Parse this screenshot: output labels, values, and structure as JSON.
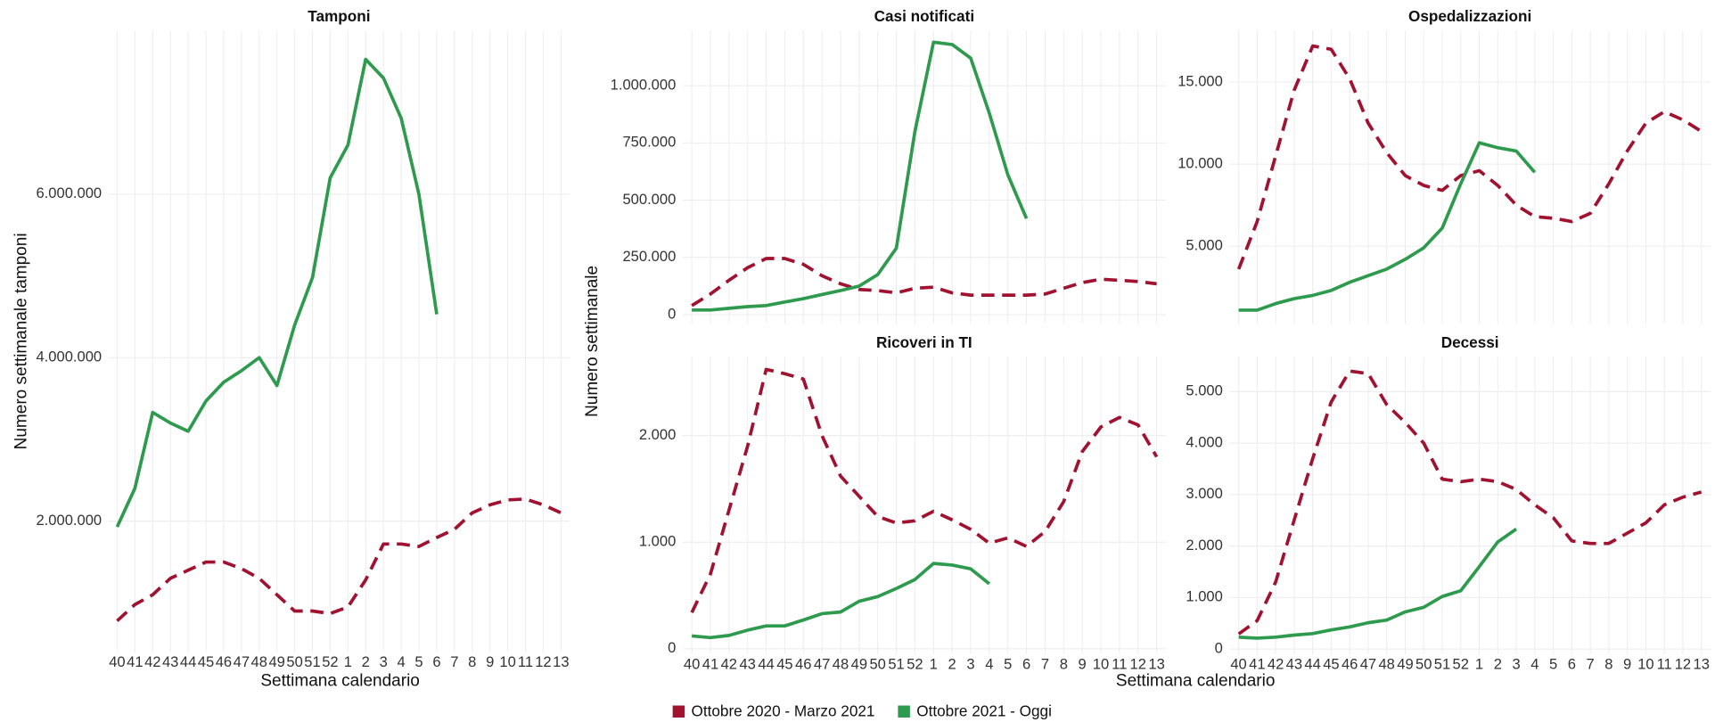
{
  "legend": [
    {
      "name": "Ottobre 2020 - Marzo 2021",
      "color": "#a11230",
      "dashed": true
    },
    {
      "name": "Ottobre 2021 - Oggi",
      "color": "#2e9a4e",
      "dashed": false
    }
  ],
  "shared_ylabel": "Numero settimanale",
  "shared_xlabel": "Settimana calendario",
  "chart_data": [
    {
      "type": "line",
      "title": "Tamponi",
      "ylabel": "Numero settimanale tamponi",
      "xlabel": "Settimana calendario",
      "categories": [
        "40",
        "41",
        "42",
        "43",
        "44",
        "45",
        "46",
        "47",
        "48",
        "49",
        "50",
        "51",
        "52",
        "1",
        "2",
        "3",
        "4",
        "5",
        "6",
        "7",
        "8",
        "9",
        "10",
        "11",
        "12",
        "13"
      ],
      "ylim": [
        400000,
        8000000
      ],
      "yticks": [
        {
          "value": 2000000,
          "label": "2.000.000"
        },
        {
          "value": 4000000,
          "label": "4.000.000"
        },
        {
          "value": 6000000,
          "label": "6.000.000"
        }
      ],
      "series": [
        {
          "values": [
            780000,
            980000,
            1100000,
            1300000,
            1400000,
            1500000,
            1500000,
            1420000,
            1300000,
            1100000,
            900000,
            900000,
            870000,
            950000,
            1280000,
            1720000,
            1720000,
            1690000,
            1800000,
            1900000,
            2100000,
            2200000,
            2260000,
            2270000,
            2200000,
            2100000
          ]
        },
        {
          "values": [
            1930000,
            2400000,
            3330000,
            3200000,
            3100000,
            3470000,
            3700000,
            3840000,
            4000000,
            3660000,
            4400000,
            4980000,
            6200000,
            6600000,
            7650000,
            7420000,
            6930000,
            6000000,
            4530000,
            null,
            null,
            null,
            null,
            null,
            null,
            null
          ]
        }
      ]
    },
    {
      "type": "line",
      "title": "Casi notificati",
      "ylim": [
        -40000,
        1240000
      ],
      "yticks": [
        0,
        {
          "value": 250000,
          "label": "250.000"
        },
        {
          "value": 500000,
          "label": "500.000"
        },
        {
          "value": 750000,
          "label": "750.000"
        },
        {
          "value": 1000000,
          "label": "1.000.000"
        }
      ],
      "series": [
        {
          "values": [
            40000,
            90000,
            150000,
            205000,
            245000,
            245000,
            220000,
            170000,
            135000,
            110000,
            105000,
            95000,
            115000,
            120000,
            95000,
            85000,
            85000,
            85000,
            85000,
            90000,
            115000,
            140000,
            155000,
            150000,
            145000,
            135000
          ]
        },
        {
          "values": [
            20000,
            20000,
            28000,
            35000,
            40000,
            55000,
            70000,
            88000,
            105000,
            125000,
            175000,
            290000,
            800000,
            1190000,
            1180000,
            1120000,
            880000,
            610000,
            420000,
            null,
            null,
            null,
            null,
            null,
            null,
            null
          ]
        }
      ]
    },
    {
      "type": "line",
      "title": "Ospedalizzazioni",
      "ylim": [
        270,
        18130
      ],
      "yticks": [
        {
          "value": 5000,
          "label": "5.000"
        },
        {
          "value": 10000,
          "label": "10.000"
        },
        {
          "value": 15000,
          "label": "15.000"
        }
      ],
      "series": [
        {
          "values": [
            3600,
            6500,
            10500,
            14500,
            17200,
            17000,
            15200,
            12500,
            10700,
            9300,
            8700,
            8400,
            9300,
            9600,
            8700,
            7500,
            6800,
            6700,
            6500,
            7000,
            8800,
            10800,
            12500,
            13200,
            12700,
            12000
          ]
        },
        {
          "values": [
            1100,
            1100,
            1500,
            1800,
            2000,
            2300,
            2800,
            3200,
            3600,
            4200,
            4900,
            6100,
            8800,
            11300,
            11000,
            10800,
            9500,
            null,
            null,
            null,
            null,
            null,
            null,
            null,
            null,
            null
          ]
        }
      ]
    },
    {
      "type": "line",
      "title": "Ricoveri in TI",
      "categories": [
        "40",
        "41",
        "42",
        "43",
        "44",
        "45",
        "46",
        "47",
        "48",
        "49",
        "50",
        "51",
        "52",
        "1",
        "2",
        "3",
        "4",
        "5",
        "6",
        "7",
        "8",
        "9",
        "10",
        "11",
        "12",
        "13"
      ],
      "ylim": [
        -50,
        2740
      ],
      "yticks": [
        0,
        {
          "value": 1000,
          "label": "1.000"
        },
        {
          "value": 2000,
          "label": "2.000"
        }
      ],
      "series": [
        {
          "values": [
            340,
            700,
            1300,
            1900,
            2620,
            2580,
            2530,
            2000,
            1620,
            1430,
            1240,
            1180,
            1200,
            1290,
            1210,
            1120,
            990,
            1040,
            960,
            1100,
            1380,
            1850,
            2080,
            2170,
            2100,
            1800
          ]
        },
        {
          "values": [
            120,
            105,
            125,
            175,
            215,
            215,
            270,
            330,
            345,
            445,
            490,
            565,
            650,
            800,
            785,
            750,
            610,
            null,
            null,
            null,
            null,
            null,
            null,
            null,
            null,
            null
          ]
        }
      ]
    },
    {
      "type": "line",
      "title": "Decessi",
      "categories": [
        "40",
        "41",
        "42",
        "43",
        "44",
        "45",
        "46",
        "47",
        "48",
        "49",
        "50",
        "51",
        "52",
        "1",
        "2",
        "3",
        "4",
        "5",
        "6",
        "7",
        "8",
        "9",
        "10",
        "11",
        "12",
        "13"
      ],
      "ylim": [
        -100,
        5680
      ],
      "yticks": [
        0,
        {
          "value": 1000,
          "label": "1.000"
        },
        {
          "value": 2000,
          "label": "2.000"
        },
        {
          "value": 3000,
          "label": "3.000"
        },
        {
          "value": 4000,
          "label": "4.000"
        },
        {
          "value": 5000,
          "label": "5.000"
        }
      ],
      "series": [
        {
          "values": [
            290,
            550,
            1300,
            2500,
            3700,
            4800,
            5400,
            5350,
            4750,
            4400,
            4000,
            3300,
            3250,
            3300,
            3250,
            3100,
            2800,
            2550,
            2100,
            2050,
            2050,
            2250,
            2450,
            2800,
            2950,
            3050
          ]
        },
        {
          "values": [
            230,
            210,
            230,
            270,
            300,
            370,
            430,
            510,
            560,
            720,
            810,
            1020,
            1130,
            1600,
            2080,
            2330,
            null,
            null,
            null,
            null,
            null,
            null,
            null,
            null,
            null,
            null
          ]
        }
      ]
    }
  ]
}
